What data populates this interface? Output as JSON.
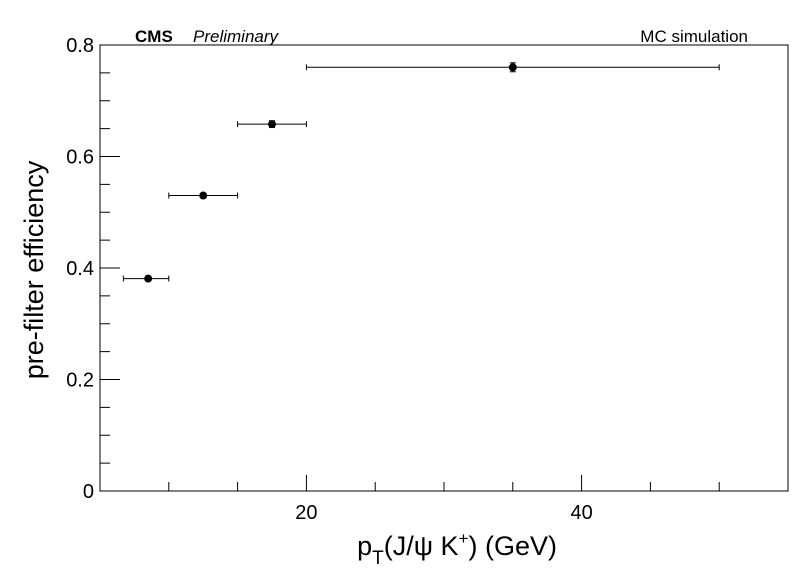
{
  "chart_data": {
    "type": "scatter",
    "title": "",
    "header_left_bold": "CMS",
    "header_left_italic": "Preliminary",
    "header_right": "MC simulation",
    "xlabel": {
      "main": "p",
      "sub": "T",
      "paren": "(J/ψ K",
      "sup": "+",
      "unit": ") (GeV)"
    },
    "ylabel": "pre-filter efficiency",
    "xlim": [
      5,
      55
    ],
    "ylim": [
      0,
      0.8
    ],
    "x_major_ticks": [
      20,
      40
    ],
    "x_minor_ticks": [
      10,
      15,
      25,
      30,
      35,
      45,
      50
    ],
    "y_major_ticks": [
      0,
      0.2,
      0.4,
      0.6,
      0.8
    ],
    "y_minor_ticks": [
      0.05,
      0.1,
      0.15,
      0.25,
      0.3,
      0.35,
      0.45,
      0.5,
      0.55,
      0.65,
      0.7,
      0.75
    ],
    "x_tick_labels": [
      "20",
      "40"
    ],
    "y_tick_labels": [
      "0",
      "0.2",
      "0.4",
      "0.6",
      "0.8"
    ],
    "grid": false,
    "legend": "none",
    "marker_color": "#000000",
    "points": [
      {
        "x": 8.5,
        "x_low": 6.7,
        "x_high": 10.0,
        "y": 0.381,
        "y_err": 0.004
      },
      {
        "x": 12.5,
        "x_low": 10.0,
        "x_high": 15.0,
        "y": 0.53,
        "y_err": 0.004
      },
      {
        "x": 17.5,
        "x_low": 15.0,
        "x_high": 20.0,
        "y": 0.658,
        "y_err": 0.006
      },
      {
        "x": 35.0,
        "x_low": 20.0,
        "x_high": 50.0,
        "y": 0.76,
        "y_err": 0.008
      }
    ]
  }
}
